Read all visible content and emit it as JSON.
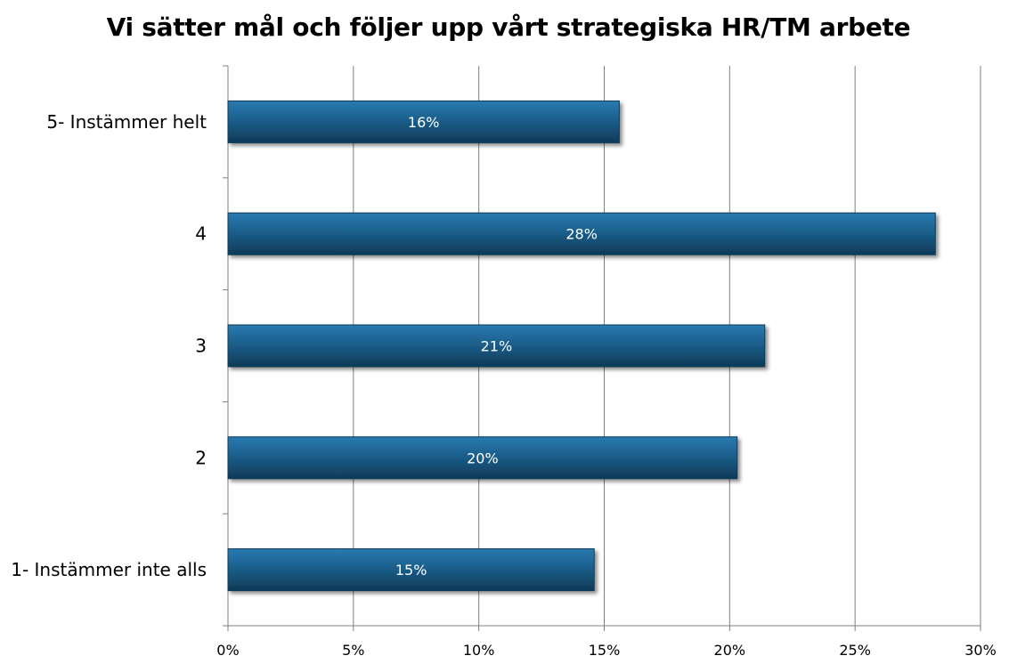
{
  "chart_data": {
    "type": "bar",
    "orientation": "horizontal",
    "title": "Vi sätter mål och följer upp vårt strategiska HR/TM arbete",
    "xlabel": "",
    "ylabel": "",
    "categories": [
      "5- Instämmer helt",
      "4",
      "3",
      "2",
      "1- Instämmer inte alls"
    ],
    "values": [
      15.6,
      28.2,
      21.4,
      20.3,
      14.6
    ],
    "data_labels": [
      "16%",
      "28%",
      "21%",
      "20%",
      "15%"
    ],
    "xlim": [
      0,
      30
    ],
    "ticks": [
      0,
      5,
      10,
      15,
      20,
      25,
      30
    ],
    "tick_labels": [
      "0%",
      "5%",
      "10%",
      "15%",
      "20%",
      "25%",
      "30%"
    ],
    "grid": true,
    "legend": "none",
    "colors": {
      "bar": "#1b5f8c",
      "bar_highlight": "#2a7ab0",
      "bar_shadow": "#0f3a57",
      "grid": "#7f7f7f",
      "axis": "#7f7f7f"
    }
  }
}
